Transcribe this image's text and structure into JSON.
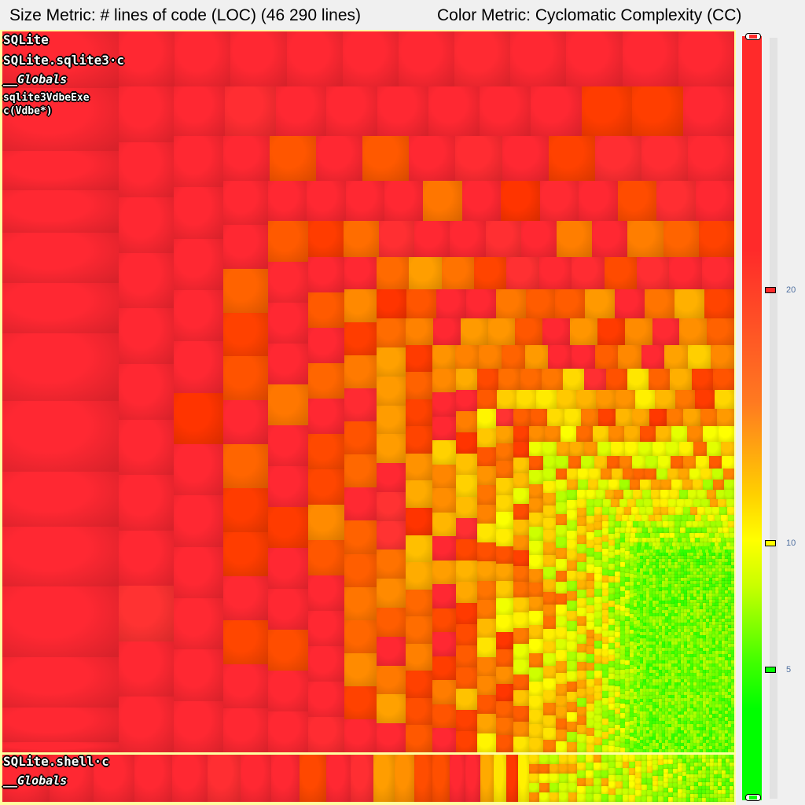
{
  "header": {
    "size_metric": "Size Metric: # lines of code (LOC) (46 290 lines)",
    "color_metric": "Color Metric: Cyclomatic Complexity (CC)"
  },
  "treemap": {
    "root_label": "SQLite",
    "files": [
      {
        "label": "SQLite.sqlite3·c",
        "group": "__Globals",
        "function_line1": "sqlite3VdbeExe",
        "function_line2": "c(Vdbe*)"
      },
      {
        "label": "SQLite.shell·c",
        "group": "__Globals"
      }
    ]
  },
  "legend": {
    "ticks": [
      {
        "value": 20,
        "label": "20",
        "color": "#ff2a2a"
      },
      {
        "value": 10,
        "label": "10",
        "color": "#ffff00"
      },
      {
        "value": 5,
        "label": "5",
        "color": "#00ff00"
      }
    ],
    "colors": {
      "high": "#ff2a2a",
      "mid": "#ffff00",
      "low": "#00ff00"
    }
  }
}
